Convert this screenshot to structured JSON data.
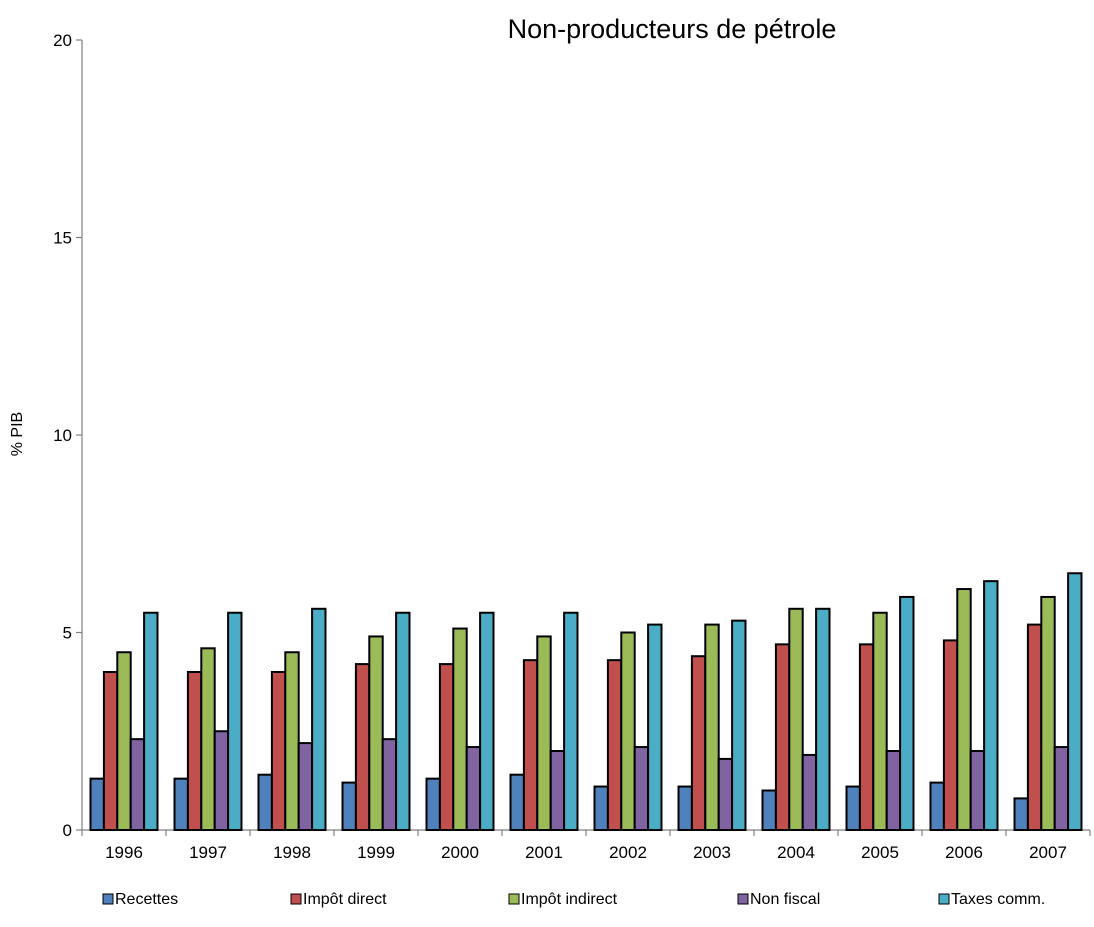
{
  "chart_data": {
    "type": "bar",
    "title": "Non-producteurs de pétrole",
    "xlabel": "",
    "ylabel": "% PIB",
    "ylim": [
      0,
      20
    ],
    "yticks": [
      0,
      5,
      10,
      15,
      20
    ],
    "grid": false,
    "legend_position": "bottom",
    "categories": [
      "1996",
      "1997",
      "1998",
      "1999",
      "2000",
      "2001",
      "2002",
      "2003",
      "2004",
      "2005",
      "2006",
      "2007"
    ],
    "series": [
      {
        "name": "Recettes",
        "color": "#4f81bd",
        "values": [
          1.3,
          1.3,
          1.4,
          1.2,
          1.3,
          1.4,
          1.1,
          1.1,
          1.0,
          1.1,
          1.2,
          0.8
        ]
      },
      {
        "name": "Impôt direct",
        "color": "#c0504d",
        "values": [
          4.0,
          4.0,
          4.0,
          4.2,
          4.2,
          4.3,
          4.3,
          4.4,
          4.7,
          4.7,
          4.8,
          5.2
        ]
      },
      {
        "name": "Impôt indirect",
        "color": "#9bbb59",
        "values": [
          4.5,
          4.6,
          4.5,
          4.9,
          5.1,
          4.9,
          5.0,
          5.2,
          5.6,
          5.5,
          6.1,
          5.9
        ]
      },
      {
        "name": "Non fiscal",
        "color": "#8064a2",
        "values": [
          2.3,
          2.5,
          2.2,
          2.3,
          2.1,
          2.0,
          2.1,
          1.8,
          1.9,
          2.0,
          2.0,
          2.1
        ]
      },
      {
        "name": "Taxes comm.",
        "color": "#4bacc6",
        "values": [
          5.5,
          5.5,
          5.6,
          5.5,
          5.5,
          5.5,
          5.2,
          5.3,
          5.6,
          5.9,
          6.3,
          6.5
        ]
      }
    ]
  }
}
